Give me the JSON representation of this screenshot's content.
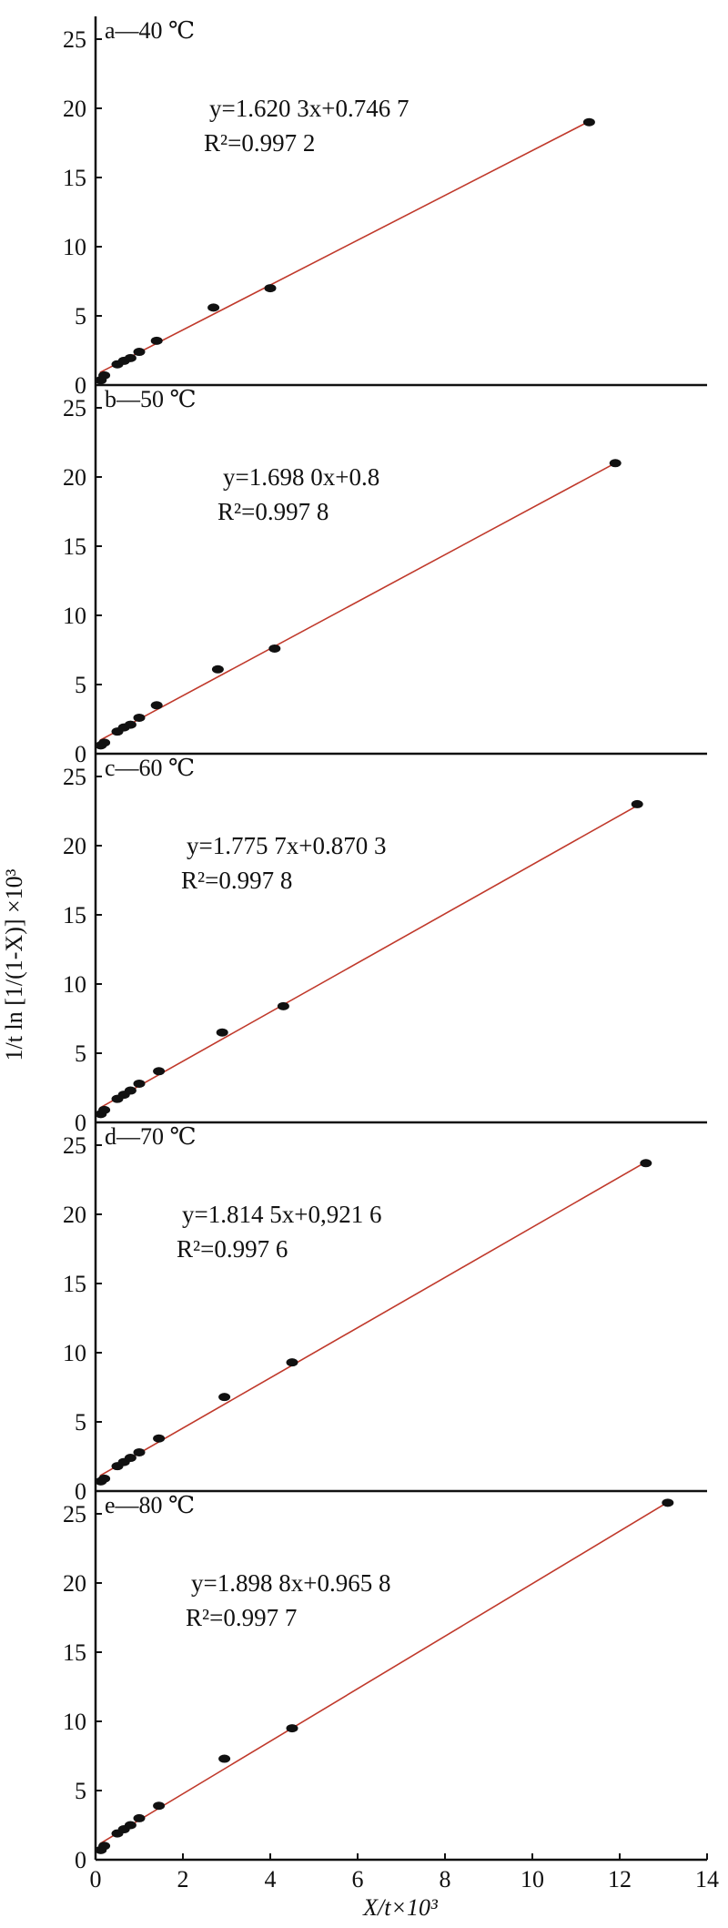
{
  "figure": {
    "y_axis_label": "1/t ln [1/(1-X)] ×10³",
    "x_axis_label": "X/t×10³",
    "panel_y_ticks": [
      "0",
      "5",
      "10",
      "15",
      "20",
      "25"
    ],
    "x_ticks": [
      "0",
      "2",
      "4",
      "6",
      "8",
      "10",
      "12",
      "14"
    ]
  },
  "colors": {
    "fit_line": "#c0392b",
    "points": "#111111",
    "axes": "#111111"
  },
  "chart_data": [
    {
      "type": "scatter",
      "panel_label": "a—40 ℃",
      "equation": "y=1.620 3x+0.746 7",
      "r_squared": "R²=0.997 2",
      "fit": {
        "slope": 1.6203,
        "intercept": 0.7467
      },
      "xlim": [
        0,
        14
      ],
      "ylim": [
        0,
        25
      ],
      "points": [
        {
          "x": 0.12,
          "y": 0.35
        },
        {
          "x": 0.2,
          "y": 0.7
        },
        {
          "x": 0.5,
          "y": 1.5
        },
        {
          "x": 0.65,
          "y": 1.75
        },
        {
          "x": 0.8,
          "y": 1.95
        },
        {
          "x": 1.0,
          "y": 2.4
        },
        {
          "x": 1.4,
          "y": 3.2
        },
        {
          "x": 2.7,
          "y": 5.6
        },
        {
          "x": 4.0,
          "y": 7.0
        },
        {
          "x": 11.3,
          "y": 19.0
        }
      ]
    },
    {
      "type": "scatter",
      "panel_label": "b—50 ℃",
      "equation": "y=1.698 0x+0.8",
      "r_squared": "R²=0.997 8",
      "fit": {
        "slope": 1.698,
        "intercept": 0.8
      },
      "xlim": [
        0,
        14
      ],
      "ylim": [
        0,
        25
      ],
      "points": [
        {
          "x": 0.12,
          "y": 0.6
        },
        {
          "x": 0.2,
          "y": 0.8
        },
        {
          "x": 0.5,
          "y": 1.6
        },
        {
          "x": 0.65,
          "y": 1.9
        },
        {
          "x": 0.8,
          "y": 2.1
        },
        {
          "x": 1.0,
          "y": 2.6
        },
        {
          "x": 1.4,
          "y": 3.5
        },
        {
          "x": 2.8,
          "y": 6.1
        },
        {
          "x": 4.1,
          "y": 7.6
        },
        {
          "x": 11.9,
          "y": 21.0
        }
      ]
    },
    {
      "type": "scatter",
      "panel_label": "c—60 ℃",
      "equation": "y=1.775 7x+0.870 3",
      "r_squared": "R²=0.997 8",
      "fit": {
        "slope": 1.7757,
        "intercept": 0.8703
      },
      "xlim": [
        0,
        14
      ],
      "ylim": [
        0,
        25
      ],
      "points": [
        {
          "x": 0.12,
          "y": 0.6
        },
        {
          "x": 0.2,
          "y": 0.9
        },
        {
          "x": 0.5,
          "y": 1.7
        },
        {
          "x": 0.65,
          "y": 2.0
        },
        {
          "x": 0.8,
          "y": 2.3
        },
        {
          "x": 1.0,
          "y": 2.8
        },
        {
          "x": 1.45,
          "y": 3.7
        },
        {
          "x": 2.9,
          "y": 6.5
        },
        {
          "x": 4.3,
          "y": 8.4
        },
        {
          "x": 12.4,
          "y": 23.0
        }
      ]
    },
    {
      "type": "scatter",
      "panel_label": "d—70 ℃",
      "equation": "y=1.814 5x+0,921 6",
      "r_squared": "R²=0.997 6",
      "fit": {
        "slope": 1.8145,
        "intercept": 0.9216
      },
      "xlim": [
        0,
        14
      ],
      "ylim": [
        0,
        25
      ],
      "points": [
        {
          "x": 0.12,
          "y": 0.7
        },
        {
          "x": 0.2,
          "y": 0.9
        },
        {
          "x": 0.5,
          "y": 1.8
        },
        {
          "x": 0.65,
          "y": 2.1
        },
        {
          "x": 0.8,
          "y": 2.4
        },
        {
          "x": 1.0,
          "y": 2.8
        },
        {
          "x": 1.45,
          "y": 3.8
        },
        {
          "x": 2.95,
          "y": 6.8
        },
        {
          "x": 4.5,
          "y": 9.3
        },
        {
          "x": 12.6,
          "y": 23.7
        }
      ]
    },
    {
      "type": "scatter",
      "panel_label": "e—80 ℃",
      "equation": "y=1.898 8x+0.965 8",
      "r_squared": "R²=0.997 7",
      "fit": {
        "slope": 1.8988,
        "intercept": 0.9658
      },
      "xlim": [
        0,
        14
      ],
      "ylim": [
        0,
        25
      ],
      "points": [
        {
          "x": 0.12,
          "y": 0.7
        },
        {
          "x": 0.2,
          "y": 1.0
        },
        {
          "x": 0.5,
          "y": 1.9
        },
        {
          "x": 0.65,
          "y": 2.2
        },
        {
          "x": 0.8,
          "y": 2.5
        },
        {
          "x": 1.0,
          "y": 3.0
        },
        {
          "x": 1.45,
          "y": 3.9
        },
        {
          "x": 2.95,
          "y": 7.3
        },
        {
          "x": 4.5,
          "y": 9.5
        },
        {
          "x": 13.1,
          "y": 25.8
        }
      ]
    }
  ]
}
